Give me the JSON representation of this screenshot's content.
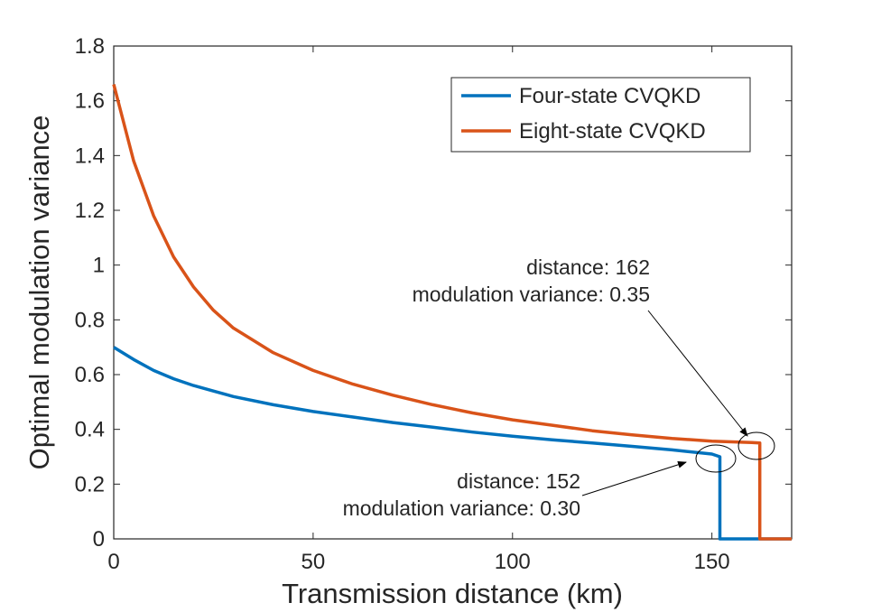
{
  "chart_data": {
    "type": "line",
    "title": "",
    "xlabel": "Transmission distance (km)",
    "ylabel": "Optimal modulation variance",
    "xlim": [
      0,
      170
    ],
    "ylim": [
      0,
      1.8
    ],
    "xticks": [
      0,
      50,
      100,
      150
    ],
    "xtick_labels": [
      "0",
      "50",
      "100",
      "150"
    ],
    "yticks": [
      0,
      0.2,
      0.4,
      0.6,
      0.8,
      1,
      1.2,
      1.4,
      1.6,
      1.8
    ],
    "ytick_labels": [
      "0",
      "0.2",
      "0.4",
      "0.6",
      "0.8",
      "1",
      "1.2",
      "1.4",
      "1.6",
      "1.8"
    ],
    "grid": false,
    "legend_position": "top-right",
    "series": [
      {
        "name": "Four-state CVQKD",
        "color": "#0072BD",
        "x": [
          0,
          5,
          10,
          15,
          20,
          25,
          30,
          40,
          50,
          60,
          70,
          80,
          90,
          100,
          110,
          120,
          130,
          140,
          150,
          152,
          152,
          160,
          170
        ],
        "y": [
          0.7,
          0.655,
          0.615,
          0.585,
          0.56,
          0.54,
          0.52,
          0.49,
          0.465,
          0.445,
          0.425,
          0.408,
          0.39,
          0.375,
          0.362,
          0.35,
          0.338,
          0.325,
          0.31,
          0.3,
          0,
          0,
          0
        ]
      },
      {
        "name": "Eight-state CVQKD",
        "color": "#D95319",
        "x": [
          0,
          5,
          10,
          15,
          20,
          25,
          30,
          40,
          50,
          60,
          70,
          80,
          90,
          100,
          110,
          120,
          130,
          140,
          150,
          160,
          162,
          162,
          170
        ],
        "y": [
          1.66,
          1.38,
          1.18,
          1.03,
          0.92,
          0.835,
          0.77,
          0.68,
          0.615,
          0.565,
          0.525,
          0.49,
          0.46,
          0.435,
          0.415,
          0.395,
          0.38,
          0.367,
          0.357,
          0.352,
          0.35,
          0,
          0
        ]
      }
    ],
    "annotations": [
      {
        "line1": "distance: 162",
        "line2": "modulation variance: 0.35",
        "x": 162,
        "y": 0.35
      },
      {
        "line1": "distance: 152",
        "line2": "modulation variance: 0.30",
        "x": 152,
        "y": 0.3
      }
    ]
  }
}
